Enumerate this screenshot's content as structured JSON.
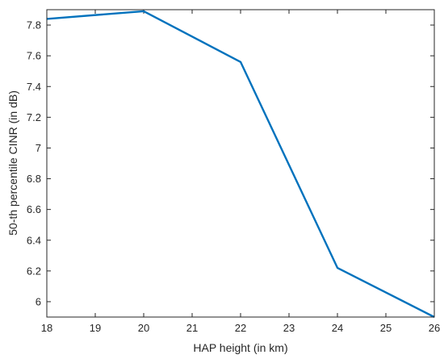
{
  "chart_data": {
    "type": "line",
    "xlabel": "HAP height (in km)",
    "ylabel": "50-th percentile CINR (in dB)",
    "xlim": [
      18,
      26
    ],
    "ylim": [
      5.9,
      7.9
    ],
    "xticks": [
      18,
      19,
      20,
      21,
      22,
      23,
      24,
      25,
      26
    ],
    "yticks": [
      6,
      6.2,
      6.4,
      6.6,
      6.8,
      7,
      7.2,
      7.4,
      7.6,
      7.8
    ],
    "grid": false,
    "series": [
      {
        "color": "#0072BD",
        "x": [
          18,
          20,
          22,
          24,
          26
        ],
        "y": [
          7.84,
          7.89,
          7.56,
          6.22,
          5.9
        ]
      }
    ]
  }
}
